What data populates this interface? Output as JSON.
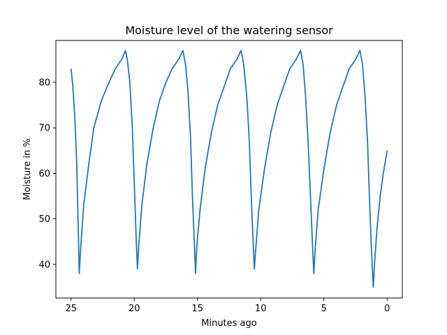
{
  "chart_data": {
    "type": "line",
    "title": "Moisture level of the watering sensor",
    "xlabel": "Minutes ago",
    "ylabel": "Moisture in %",
    "x_inverted": true,
    "xlim": [
      26.2,
      -1.2
    ],
    "ylim": [
      32.6,
      89.2
    ],
    "xticks": [
      25,
      20,
      15,
      10,
      5,
      0
    ],
    "yticks": [
      40,
      50,
      60,
      70,
      80
    ],
    "grid": false,
    "series": [
      {
        "color": "#1f77b4",
        "points": [
          [
            25.0,
            83.0
          ],
          [
            24.85,
            79.0
          ],
          [
            24.7,
            72.0
          ],
          [
            24.55,
            62.0
          ],
          [
            24.45,
            50.0
          ],
          [
            24.35,
            38.0
          ],
          [
            24.25,
            43.0
          ],
          [
            24.0,
            53.0
          ],
          [
            23.6,
            62.0
          ],
          [
            23.2,
            70.0
          ],
          [
            22.6,
            76.0
          ],
          [
            22.0,
            80.0
          ],
          [
            21.5,
            83.0
          ],
          [
            21.0,
            85.0
          ],
          [
            20.7,
            87.0
          ],
          [
            20.55,
            85.0
          ],
          [
            20.35,
            80.0
          ],
          [
            20.15,
            70.0
          ],
          [
            20.0,
            58.0
          ],
          [
            19.85,
            46.0
          ],
          [
            19.75,
            39.0
          ],
          [
            19.65,
            44.0
          ],
          [
            19.4,
            53.0
          ],
          [
            19.0,
            62.0
          ],
          [
            18.5,
            70.0
          ],
          [
            18.0,
            76.0
          ],
          [
            17.5,
            80.0
          ],
          [
            17.0,
            83.0
          ],
          [
            16.5,
            85.0
          ],
          [
            16.15,
            87.0
          ],
          [
            15.95,
            84.0
          ],
          [
            15.75,
            78.0
          ],
          [
            15.55,
            68.0
          ],
          [
            15.4,
            55.0
          ],
          [
            15.25,
            45.0
          ],
          [
            15.15,
            38.0
          ],
          [
            15.05,
            44.0
          ],
          [
            14.8,
            52.0
          ],
          [
            14.4,
            61.0
          ],
          [
            13.9,
            69.0
          ],
          [
            13.4,
            75.0
          ],
          [
            12.9,
            79.0
          ],
          [
            12.4,
            83.0
          ],
          [
            11.9,
            85.0
          ],
          [
            11.55,
            87.0
          ],
          [
            11.35,
            84.0
          ],
          [
            11.1,
            77.0
          ],
          [
            10.9,
            67.0
          ],
          [
            10.75,
            55.0
          ],
          [
            10.6,
            45.0
          ],
          [
            10.5,
            39.0
          ],
          [
            10.4,
            43.0
          ],
          [
            10.15,
            52.0
          ],
          [
            9.7,
            61.0
          ],
          [
            9.2,
            69.0
          ],
          [
            8.7,
            75.0
          ],
          [
            8.2,
            79.0
          ],
          [
            7.7,
            83.0
          ],
          [
            7.2,
            85.0
          ],
          [
            6.85,
            87.0
          ],
          [
            6.65,
            84.0
          ],
          [
            6.45,
            77.0
          ],
          [
            6.25,
            67.0
          ],
          [
            6.05,
            54.0
          ],
          [
            5.9,
            44.0
          ],
          [
            5.8,
            38.0
          ],
          [
            5.7,
            43.0
          ],
          [
            5.45,
            52.0
          ],
          [
            5.0,
            61.0
          ],
          [
            4.5,
            69.0
          ],
          [
            4.0,
            75.0
          ],
          [
            3.5,
            79.0
          ],
          [
            3.0,
            83.0
          ],
          [
            2.5,
            85.0
          ],
          [
            2.15,
            87.0
          ],
          [
            1.95,
            84.0
          ],
          [
            1.75,
            77.0
          ],
          [
            1.55,
            67.0
          ],
          [
            1.4,
            55.0
          ],
          [
            1.25,
            44.0
          ],
          [
            1.1,
            35.0
          ],
          [
            1.0,
            40.0
          ],
          [
            0.8,
            48.0
          ],
          [
            0.55,
            55.0
          ],
          [
            0.3,
            60.0
          ],
          [
            0.0,
            65.0
          ]
        ]
      }
    ]
  }
}
